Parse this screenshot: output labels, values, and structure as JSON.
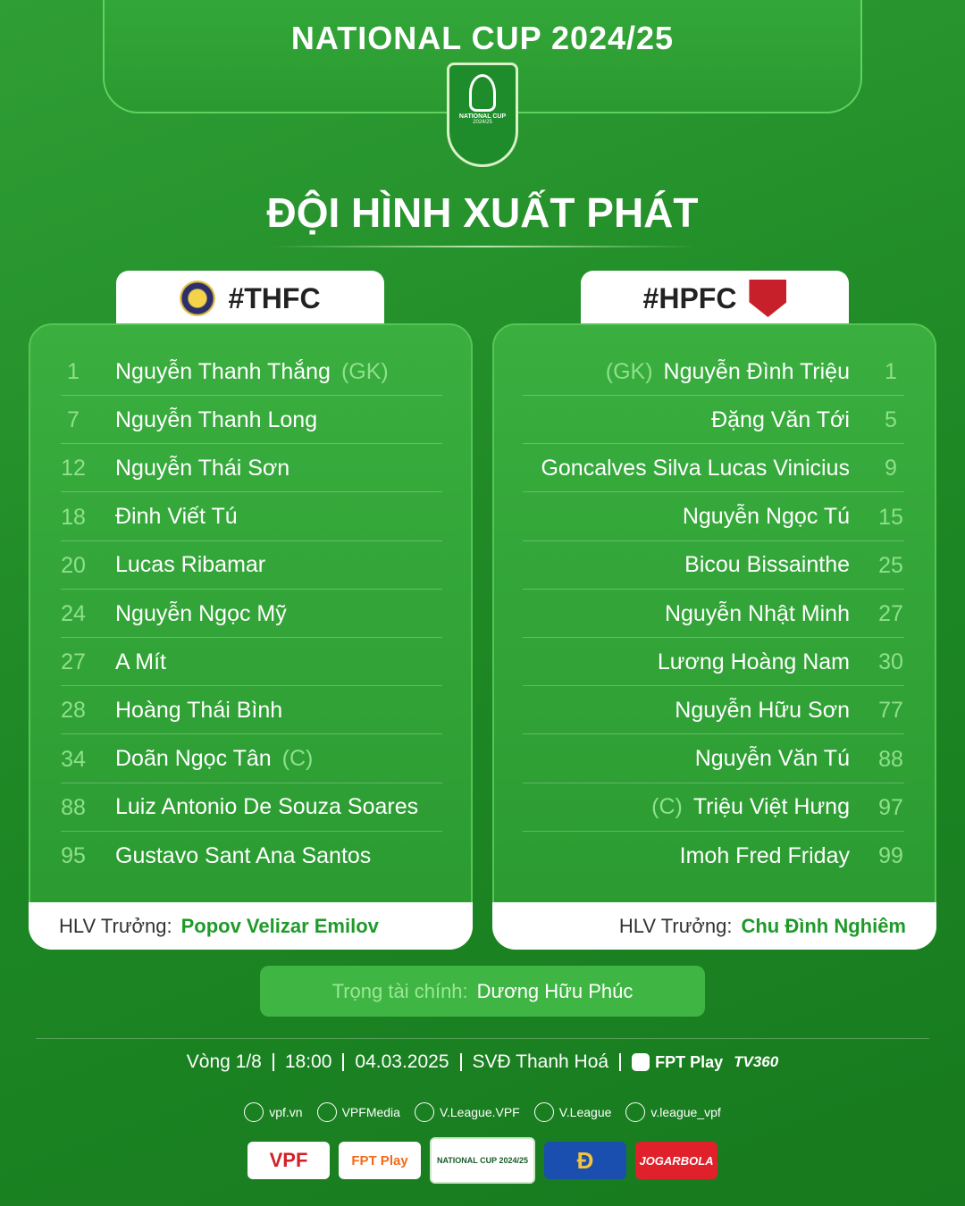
{
  "header": {
    "title": "NATIONAL CUP 2024/25",
    "badge_line1": "NATIONAL CUP",
    "badge_line2": "2024/25"
  },
  "heading": "ĐỘI HÌNH XUẤT PHÁT",
  "teams": [
    {
      "tag": "#THFC",
      "players": [
        {
          "number": 1,
          "name": "Nguyễn Thanh Thắng",
          "role": "(GK)"
        },
        {
          "number": 7,
          "name": "Nguyễn Thanh Long"
        },
        {
          "number": 12,
          "name": "Nguyễn Thái Sơn"
        },
        {
          "number": 18,
          "name": "Đinh Viết Tú"
        },
        {
          "number": 20,
          "name": "Lucas Ribamar"
        },
        {
          "number": 24,
          "name": "Nguyễn Ngọc Mỹ"
        },
        {
          "number": 27,
          "name": "A Mít"
        },
        {
          "number": 28,
          "name": "Hoàng Thái Bình"
        },
        {
          "number": 34,
          "name": "Doãn Ngọc Tân",
          "role": "(C)"
        },
        {
          "number": 88,
          "name": "Luiz Antonio De Souza Soares"
        },
        {
          "number": 95,
          "name": "Gustavo Sant Ana Santos"
        }
      ],
      "coach_label": "HLV Trưởng:",
      "coach": "Popov Velizar Emilov"
    },
    {
      "tag": "#HPFC",
      "players": [
        {
          "number": 1,
          "name": "Nguyễn Đình Triệu",
          "role": "(GK)"
        },
        {
          "number": 5,
          "name": "Đặng Văn Tới"
        },
        {
          "number": 9,
          "name": "Goncalves Silva Lucas Vinicius"
        },
        {
          "number": 15,
          "name": "Nguyễn Ngọc Tú"
        },
        {
          "number": 25,
          "name": "Bicou Bissainthe"
        },
        {
          "number": 27,
          "name": "Nguyễn Nhật Minh"
        },
        {
          "number": 30,
          "name": "Lương Hoàng Nam"
        },
        {
          "number": 77,
          "name": "Nguyễn Hữu Sơn"
        },
        {
          "number": 88,
          "name": "Nguyễn Văn Tú"
        },
        {
          "number": 97,
          "name": "Triệu Việt Hưng",
          "role": "(C)"
        },
        {
          "number": 99,
          "name": "Imoh Fred Friday"
        }
      ],
      "coach_label": "HLV Trưởng:",
      "coach": "Chu Đình Nghiêm"
    }
  ],
  "referee": {
    "label": "Trọng tài chính:",
    "name": "Dương Hữu Phúc"
  },
  "match_info": [
    "Vòng 1/8",
    "18:00",
    "04.03.2025",
    "SVĐ Thanh Hoá"
  ],
  "broadcast": [
    "FPT Play",
    "TV360"
  ],
  "socials": [
    "vpf.vn",
    "VPFMedia",
    "V.League.VPF",
    "V.League",
    "v.league_vpf"
  ],
  "sponsors": [
    "VPF",
    "FPT Play",
    "NATIONAL CUP 2024/25",
    "Đ",
    "JOGARBOLA"
  ]
}
